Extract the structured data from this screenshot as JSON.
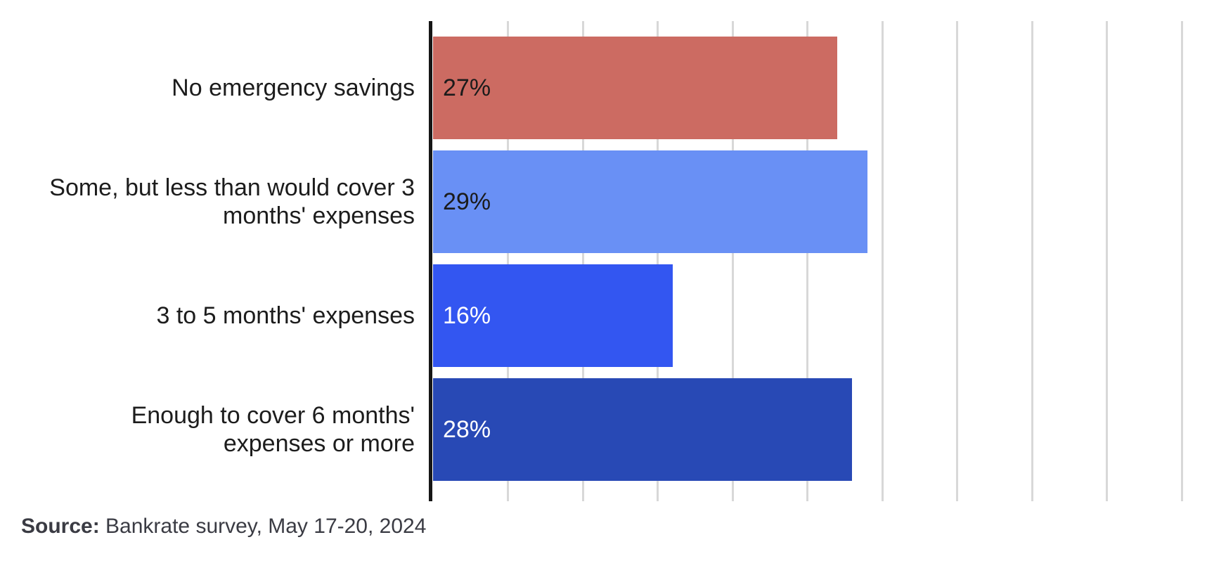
{
  "chart_data": {
    "type": "bar",
    "orientation": "horizontal",
    "title": "",
    "xlabel": "",
    "ylabel": "",
    "categories": [
      "No emergency savings",
      "Some, but less than would cover 3 months' expenses",
      "3 to 5 months' expenses",
      "Enough to cover 6 months' expenses or more"
    ],
    "values": [
      27,
      29,
      16,
      28
    ],
    "value_labels": [
      "27%",
      "29%",
      "16%",
      "28%"
    ],
    "bar_colors": [
      "#cc6b62",
      "#6990f5",
      "#3356f1",
      "#2849b5"
    ],
    "value_label_colors": [
      "#1b1b1b",
      "#1b1b1b",
      "#ffffff",
      "#ffffff"
    ],
    "xlim": [
      0,
      50
    ],
    "gridline_step_pct": 5,
    "grid": true,
    "legend_position": "none",
    "axis_color": "#161616",
    "gridline_color": "#d8d8d8"
  },
  "source": {
    "prefix": "Source:",
    "text": " Bankrate survey, May 17-20, 2024"
  }
}
